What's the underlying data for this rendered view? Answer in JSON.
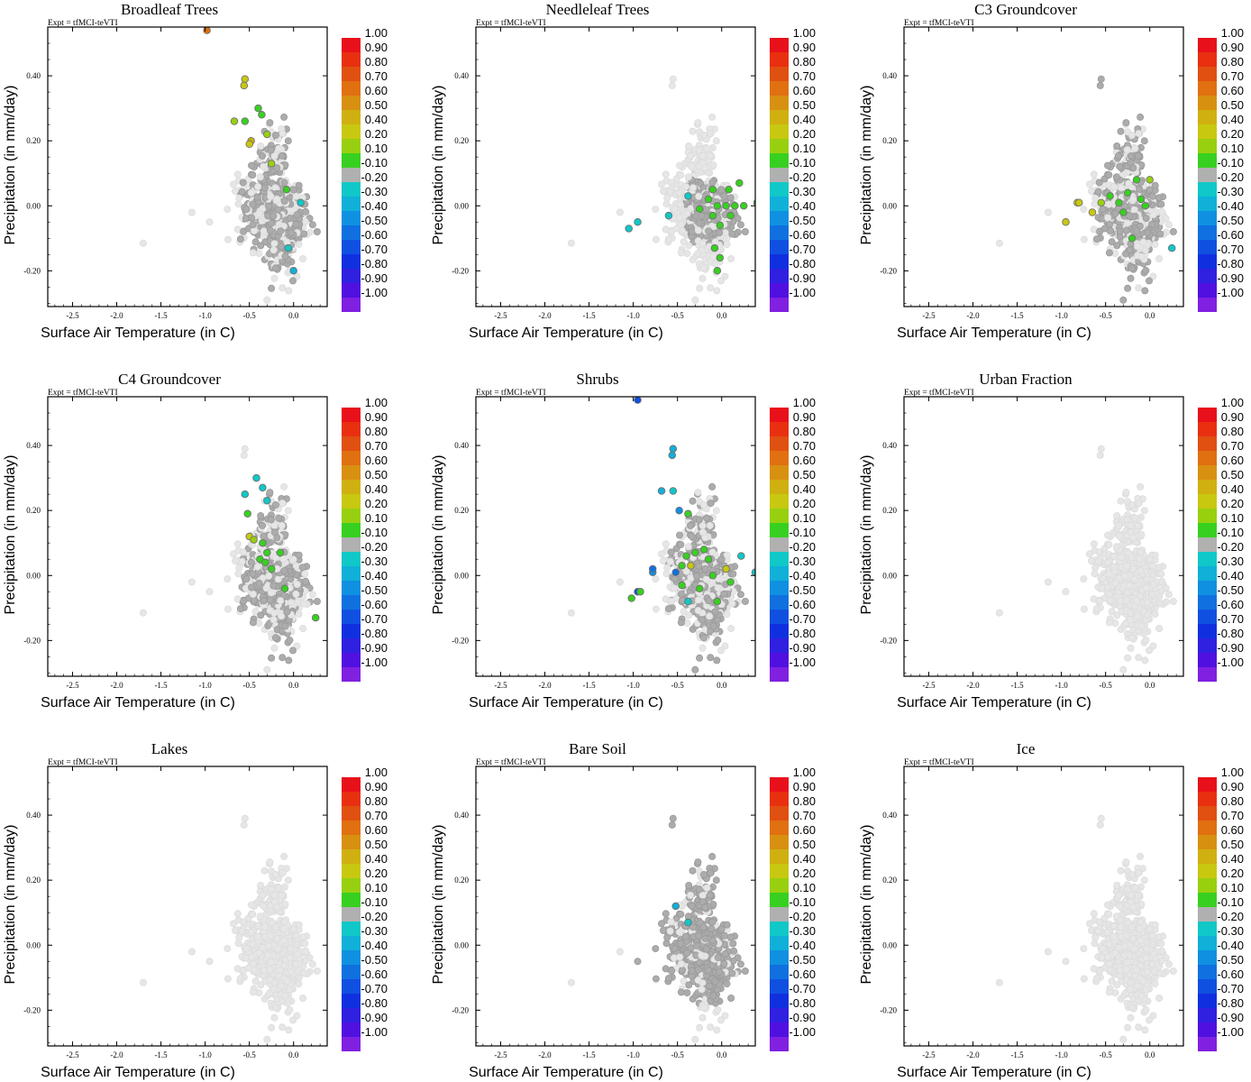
{
  "figure": {
    "experiment_label": "Expt = tfMCI-teVTI",
    "xlabel": "Surface Air Temperature (in C)",
    "ylabel": "Precipitation (in mm/day)",
    "x_ticks": [
      "-2.5",
      "-2.0",
      "-1.5",
      "-1.0",
      "-0.5",
      "0.0"
    ],
    "x_tick_values": [
      -2.5,
      -2.0,
      -1.5,
      -1.0,
      -0.5,
      0.0
    ],
    "y_ticks": [
      "0.40",
      "0.20",
      "0.00",
      "-0.20"
    ],
    "y_tick_values": [
      0.4,
      0.2,
      0.0,
      -0.2
    ],
    "xlim": [
      -2.78,
      0.38
    ],
    "ylim": [
      -0.31,
      0.55
    ]
  },
  "colorbar": {
    "labels": [
      "1.00",
      "0.90",
      "0.80",
      "0.70",
      "0.60",
      "0.50",
      "0.40",
      "0.20",
      "0.10",
      "-0.10",
      "-0.20",
      "-0.30",
      "-0.40",
      "-0.50",
      "-0.60",
      "-0.70",
      "-0.80",
      "-0.90",
      "-1.00"
    ],
    "colors": [
      "#e8101a",
      "#e83010",
      "#e05010",
      "#e07010",
      "#d89010",
      "#d0b010",
      "#c8c810",
      "#98d010",
      "#38d020",
      "#b0b0b0",
      "#10c8c8",
      "#10b0d8",
      "#1090e0",
      "#1070e0",
      "#1050e0",
      "#1030e0",
      "#3020e0",
      "#5010e0",
      "#8020e0"
    ],
    "background_color": "#e6e6e6",
    "neutral_color": "#acacac"
  },
  "chart_data": [
    {
      "type": "scatter",
      "title": "Broadleaf Trees",
      "xlim": [
        -2.78,
        0.38
      ],
      "ylim": [
        -0.31,
        0.55
      ],
      "highlight": "partial",
      "points": [
        {
          "x": -0.98,
          "y": 0.54,
          "c": "#e07010"
        },
        {
          "x": -0.55,
          "y": 0.39,
          "c": "#c8c810"
        },
        {
          "x": -0.56,
          "y": 0.37,
          "c": "#c8c810"
        },
        {
          "x": -0.67,
          "y": 0.26,
          "c": "#98d010"
        },
        {
          "x": -0.55,
          "y": 0.26,
          "c": "#38d020"
        },
        {
          "x": -0.4,
          "y": 0.3,
          "c": "#38d020"
        },
        {
          "x": -0.36,
          "y": 0.28,
          "c": "#38d020"
        },
        {
          "x": -0.3,
          "y": 0.22,
          "c": "#98d010"
        },
        {
          "x": -0.48,
          "y": 0.2,
          "c": "#d0b010"
        },
        {
          "x": -0.5,
          "y": 0.19,
          "c": "#c8c810"
        },
        {
          "x": -0.25,
          "y": 0.13,
          "c": "#98d010"
        },
        {
          "x": -0.08,
          "y": 0.05,
          "c": "#38d020"
        },
        {
          "x": 0.08,
          "y": 0.01,
          "c": "#10c8c8"
        },
        {
          "x": -0.06,
          "y": -0.13,
          "c": "#10c8c8"
        },
        {
          "x": 0.0,
          "y": -0.2,
          "c": "#10b0d8"
        }
      ]
    },
    {
      "type": "scatter",
      "title": "Needleleaf Trees",
      "xlim": [
        -2.78,
        0.38
      ],
      "ylim": [
        -0.31,
        0.55
      ],
      "highlight": "none",
      "points": [
        {
          "x": -1.05,
          "y": -0.07,
          "c": "#10c8c8"
        },
        {
          "x": -0.95,
          "y": -0.05,
          "c": "#10c8c8"
        },
        {
          "x": -0.6,
          "y": -0.03,
          "c": "#10c8c8"
        },
        {
          "x": -0.38,
          "y": 0.03,
          "c": "#10c8c8"
        },
        {
          "x": -0.1,
          "y": 0.05,
          "c": "#38d020"
        },
        {
          "x": 0.08,
          "y": 0.05,
          "c": "#38d020"
        },
        {
          "x": 0.2,
          "y": 0.07,
          "c": "#38d020"
        },
        {
          "x": 0.4,
          "y": 0.01,
          "c": "#38d020"
        },
        {
          "x": -0.15,
          "y": 0.02,
          "c": "#38d020"
        },
        {
          "x": -0.05,
          "y": 0.0,
          "c": "#38d020"
        },
        {
          "x": 0.05,
          "y": 0.0,
          "c": "#38d020"
        },
        {
          "x": 0.15,
          "y": 0.0,
          "c": "#38d020"
        },
        {
          "x": 0.25,
          "y": 0.0,
          "c": "#38d020"
        },
        {
          "x": -0.25,
          "y": -0.01,
          "c": "#38d020"
        },
        {
          "x": -0.1,
          "y": -0.03,
          "c": "#38d020"
        },
        {
          "x": 0.1,
          "y": -0.03,
          "c": "#38d020"
        },
        {
          "x": -0.02,
          "y": -0.06,
          "c": "#38d020"
        },
        {
          "x": -0.08,
          "y": -0.13,
          "c": "#38d020"
        },
        {
          "x": -0.02,
          "y": -0.16,
          "c": "#38d020"
        },
        {
          "x": -0.05,
          "y": -0.2,
          "c": "#38d020"
        }
      ]
    },
    {
      "type": "scatter",
      "title": "C3 Groundcover",
      "xlim": [
        -2.78,
        0.38
      ],
      "ylim": [
        -0.31,
        0.55
      ],
      "highlight": "partial",
      "points": [
        {
          "x": -0.82,
          "y": 0.01,
          "c": "#c8c810"
        },
        {
          "x": -0.8,
          "y": 0.01,
          "c": "#c8c810"
        },
        {
          "x": -0.95,
          "y": -0.05,
          "c": "#c8c810"
        },
        {
          "x": -0.65,
          "y": -0.02,
          "c": "#c8c810"
        },
        {
          "x": -0.55,
          "y": 0.01,
          "c": "#98d010"
        },
        {
          "x": -0.45,
          "y": 0.03,
          "c": "#38d020"
        },
        {
          "x": -0.35,
          "y": 0.01,
          "c": "#38d020"
        },
        {
          "x": -0.25,
          "y": 0.04,
          "c": "#38d020"
        },
        {
          "x": -0.15,
          "y": 0.08,
          "c": "#38d020"
        },
        {
          "x": -0.1,
          "y": 0.02,
          "c": "#38d020"
        },
        {
          "x": -0.3,
          "y": -0.02,
          "c": "#38d020"
        },
        {
          "x": -0.05,
          "y": 0.0,
          "c": "#38d020"
        },
        {
          "x": 0.0,
          "y": 0.08,
          "c": "#98d010"
        },
        {
          "x": -0.2,
          "y": -0.1,
          "c": "#38d020"
        },
        {
          "x": 0.25,
          "y": -0.13,
          "c": "#10c8c8"
        }
      ]
    },
    {
      "type": "scatter",
      "title": "C4 Groundcover",
      "xlim": [
        -2.78,
        0.38
      ],
      "ylim": [
        -0.31,
        0.55
      ],
      "highlight": "partial",
      "points": [
        {
          "x": -0.42,
          "y": 0.3,
          "c": "#10c8c8"
        },
        {
          "x": -0.35,
          "y": 0.27,
          "c": "#10c8c8"
        },
        {
          "x": -0.55,
          "y": 0.25,
          "c": "#10c8c8"
        },
        {
          "x": -0.3,
          "y": 0.23,
          "c": "#10c8c8"
        },
        {
          "x": -0.52,
          "y": 0.19,
          "c": "#38d020"
        },
        {
          "x": -0.5,
          "y": 0.12,
          "c": "#c8c810"
        },
        {
          "x": -0.45,
          "y": 0.11,
          "c": "#98d010"
        },
        {
          "x": -0.35,
          "y": 0.1,
          "c": "#38d020"
        },
        {
          "x": -0.3,
          "y": 0.07,
          "c": "#38d020"
        },
        {
          "x": -0.38,
          "y": 0.05,
          "c": "#38d020"
        },
        {
          "x": -0.32,
          "y": 0.04,
          "c": "#38d020"
        },
        {
          "x": -0.15,
          "y": 0.07,
          "c": "#38d020"
        },
        {
          "x": -0.25,
          "y": 0.02,
          "c": "#38d020"
        },
        {
          "x": -0.1,
          "y": -0.04,
          "c": "#38d020"
        },
        {
          "x": 0.25,
          "y": -0.13,
          "c": "#38d020"
        }
      ]
    },
    {
      "type": "scatter",
      "title": "Shrubs",
      "xlim": [
        -2.78,
        0.38
      ],
      "ylim": [
        -0.31,
        0.55
      ],
      "highlight": "partial",
      "points": [
        {
          "x": -0.95,
          "y": 0.54,
          "c": "#1050e0"
        },
        {
          "x": -0.55,
          "y": 0.39,
          "c": "#10b0d8"
        },
        {
          "x": -0.56,
          "y": 0.37,
          "c": "#10b0d8"
        },
        {
          "x": -0.68,
          "y": 0.26,
          "c": "#10b0d8"
        },
        {
          "x": -0.55,
          "y": 0.26,
          "c": "#10c8c8"
        },
        {
          "x": -0.48,
          "y": 0.2,
          "c": "#1090e0"
        },
        {
          "x": -0.38,
          "y": 0.19,
          "c": "#38d020"
        },
        {
          "x": -0.78,
          "y": 0.01,
          "c": "#1090e0"
        },
        {
          "x": -0.78,
          "y": 0.02,
          "c": "#1070e0"
        },
        {
          "x": -0.52,
          "y": 0.01,
          "c": "#1070e0"
        },
        {
          "x": -0.45,
          "y": 0.03,
          "c": "#38d020"
        },
        {
          "x": -0.4,
          "y": 0.06,
          "c": "#38d020"
        },
        {
          "x": -0.35,
          "y": 0.03,
          "c": "#c8c810"
        },
        {
          "x": -0.3,
          "y": 0.07,
          "c": "#38d020"
        },
        {
          "x": -0.2,
          "y": 0.08,
          "c": "#38d020"
        },
        {
          "x": -0.15,
          "y": 0.05,
          "c": "#38d020"
        },
        {
          "x": -0.1,
          "y": 0.0,
          "c": "#38d020"
        },
        {
          "x": 0.05,
          "y": 0.02,
          "c": "#c8c810"
        },
        {
          "x": 0.1,
          "y": -0.02,
          "c": "#38d020"
        },
        {
          "x": -0.25,
          "y": -0.04,
          "c": "#38d020"
        },
        {
          "x": -0.05,
          "y": -0.08,
          "c": "#38d020"
        },
        {
          "x": -0.45,
          "y": -0.03,
          "c": "#38d020"
        },
        {
          "x": -0.38,
          "y": -0.08,
          "c": "#10c8c8"
        },
        {
          "x": -0.95,
          "y": -0.05,
          "c": "#1050e0"
        },
        {
          "x": -1.02,
          "y": -0.07,
          "c": "#38d020"
        },
        {
          "x": 0.22,
          "y": 0.06,
          "c": "#10c8c8"
        },
        {
          "x": 0.38,
          "y": 0.01,
          "c": "#10c8c8"
        },
        {
          "x": -0.92,
          "y": -0.05,
          "c": "#38d020"
        }
      ]
    },
    {
      "type": "scatter",
      "title": "Urban Fraction",
      "xlim": [
        -2.78,
        0.38
      ],
      "ylim": [
        -0.31,
        0.55
      ],
      "highlight": "none",
      "points": []
    },
    {
      "type": "scatter",
      "title": "Lakes",
      "xlim": [
        -2.78,
        0.38
      ],
      "ylim": [
        -0.31,
        0.55
      ],
      "highlight": "none",
      "points": []
    },
    {
      "type": "scatter",
      "title": "Bare Soil",
      "xlim": [
        -2.78,
        0.38
      ],
      "ylim": [
        -0.31,
        0.55
      ],
      "highlight": "most",
      "points": [
        {
          "x": -0.52,
          "y": 0.12,
          "c": "#10b0d8"
        },
        {
          "x": -0.38,
          "y": 0.07,
          "c": "#10c8c8"
        }
      ]
    },
    {
      "type": "scatter",
      "title": "Ice",
      "xlim": [
        -2.78,
        0.38
      ],
      "ylim": [
        -0.31,
        0.55
      ],
      "highlight": "none",
      "points": []
    }
  ]
}
